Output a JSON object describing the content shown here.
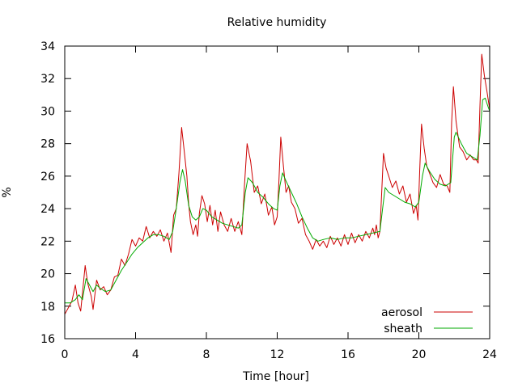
{
  "chart_data": {
    "type": "line",
    "title": "Relative humidity",
    "xlabel": "Time [hour]",
    "ylabel": "%",
    "xlim": [
      0,
      24
    ],
    "ylim": [
      16,
      34
    ],
    "xticks": [
      "0",
      "4",
      "8",
      "12",
      "16",
      "20",
      "24"
    ],
    "yticks": [
      "16",
      "18",
      "20",
      "22",
      "24",
      "26",
      "28",
      "30",
      "32",
      "34"
    ],
    "grid": false,
    "legend": "bottom-right",
    "series": [
      {
        "name": "aerosol",
        "color": "#cc0000",
        "points": [
          [
            0,
            17.5
          ],
          [
            0.2,
            17.9
          ],
          [
            0.4,
            18.3
          ],
          [
            0.6,
            19.3
          ],
          [
            0.75,
            18.2
          ],
          [
            0.9,
            17.7
          ],
          [
            1.0,
            18.8
          ],
          [
            1.15,
            20.5
          ],
          [
            1.3,
            19.4
          ],
          [
            1.5,
            18.6
          ],
          [
            1.6,
            17.8
          ],
          [
            1.8,
            19.6
          ],
          [
            2.0,
            19.0
          ],
          [
            2.2,
            19.2
          ],
          [
            2.4,
            18.7
          ],
          [
            2.6,
            19.0
          ],
          [
            2.8,
            19.8
          ],
          [
            3.0,
            19.9
          ],
          [
            3.2,
            20.9
          ],
          [
            3.4,
            20.5
          ],
          [
            3.6,
            21.2
          ],
          [
            3.8,
            22.1
          ],
          [
            4.0,
            21.7
          ],
          [
            4.2,
            22.2
          ],
          [
            4.4,
            22.0
          ],
          [
            4.6,
            22.9
          ],
          [
            4.8,
            22.2
          ],
          [
            5.0,
            22.6
          ],
          [
            5.2,
            22.3
          ],
          [
            5.4,
            22.7
          ],
          [
            5.6,
            22.0
          ],
          [
            5.8,
            22.5
          ],
          [
            6.0,
            21.3
          ],
          [
            6.15,
            23.6
          ],
          [
            6.3,
            24.0
          ],
          [
            6.45,
            26.2
          ],
          [
            6.6,
            29.0
          ],
          [
            6.75,
            27.5
          ],
          [
            6.9,
            26.0
          ],
          [
            7.0,
            24.3
          ],
          [
            7.1,
            23.2
          ],
          [
            7.25,
            22.4
          ],
          [
            7.4,
            23.0
          ],
          [
            7.5,
            22.3
          ],
          [
            7.6,
            23.7
          ],
          [
            7.75,
            24.8
          ],
          [
            7.9,
            24.3
          ],
          [
            8.05,
            23.2
          ],
          [
            8.2,
            24.2
          ],
          [
            8.35,
            23.0
          ],
          [
            8.5,
            23.9
          ],
          [
            8.65,
            22.6
          ],
          [
            8.8,
            23.8
          ],
          [
            9.0,
            23.0
          ],
          [
            9.2,
            22.6
          ],
          [
            9.4,
            23.4
          ],
          [
            9.6,
            22.6
          ],
          [
            9.8,
            23.2
          ],
          [
            10.0,
            22.4
          ],
          [
            10.15,
            25.4
          ],
          [
            10.3,
            28.0
          ],
          [
            10.5,
            26.9
          ],
          [
            10.7,
            25.0
          ],
          [
            10.9,
            25.4
          ],
          [
            11.1,
            24.3
          ],
          [
            11.3,
            24.9
          ],
          [
            11.5,
            23.6
          ],
          [
            11.7,
            24.1
          ],
          [
            11.85,
            23.0
          ],
          [
            12.0,
            23.5
          ],
          [
            12.1,
            25.8
          ],
          [
            12.2,
            28.4
          ],
          [
            12.35,
            26.6
          ],
          [
            12.5,
            25.0
          ],
          [
            12.65,
            25.4
          ],
          [
            12.8,
            24.4
          ],
          [
            13.0,
            24.0
          ],
          [
            13.2,
            23.1
          ],
          [
            13.4,
            23.4
          ],
          [
            13.6,
            22.4
          ],
          [
            13.8,
            22.0
          ],
          [
            14.0,
            21.5
          ],
          [
            14.2,
            22.1
          ],
          [
            14.4,
            21.7
          ],
          [
            14.6,
            22.0
          ],
          [
            14.8,
            21.6
          ],
          [
            15.0,
            22.3
          ],
          [
            15.2,
            21.8
          ],
          [
            15.4,
            22.2
          ],
          [
            15.6,
            21.7
          ],
          [
            15.8,
            22.4
          ],
          [
            16.0,
            21.8
          ],
          [
            16.2,
            22.5
          ],
          [
            16.4,
            21.9
          ],
          [
            16.6,
            22.4
          ],
          [
            16.8,
            22.0
          ],
          [
            17.0,
            22.6
          ],
          [
            17.2,
            22.2
          ],
          [
            17.4,
            22.8
          ],
          [
            17.5,
            22.4
          ],
          [
            17.6,
            23.0
          ],
          [
            17.7,
            22.2
          ],
          [
            17.8,
            22.6
          ],
          [
            17.9,
            25.0
          ],
          [
            18.0,
            27.4
          ],
          [
            18.15,
            26.5
          ],
          [
            18.3,
            26.0
          ],
          [
            18.5,
            25.3
          ],
          [
            18.7,
            25.7
          ],
          [
            18.9,
            24.9
          ],
          [
            19.1,
            25.4
          ],
          [
            19.3,
            24.4
          ],
          [
            19.5,
            24.9
          ],
          [
            19.7,
            23.7
          ],
          [
            19.85,
            24.2
          ],
          [
            19.95,
            23.3
          ],
          [
            20.05,
            26.4
          ],
          [
            20.15,
            29.2
          ],
          [
            20.3,
            27.7
          ],
          [
            20.45,
            26.6
          ],
          [
            20.6,
            26.2
          ],
          [
            20.8,
            25.6
          ],
          [
            21.0,
            25.3
          ],
          [
            21.2,
            26.1
          ],
          [
            21.4,
            25.5
          ],
          [
            21.6,
            25.4
          ],
          [
            21.75,
            25.0
          ],
          [
            21.85,
            29.3
          ],
          [
            21.95,
            31.5
          ],
          [
            22.1,
            29.4
          ],
          [
            22.3,
            27.8
          ],
          [
            22.5,
            27.5
          ],
          [
            22.7,
            27.0
          ],
          [
            22.9,
            27.3
          ],
          [
            23.1,
            27.0
          ],
          [
            23.25,
            27.0
          ],
          [
            23.35,
            26.8
          ],
          [
            23.45,
            30.3
          ],
          [
            23.55,
            33.5
          ],
          [
            23.7,
            32.2
          ],
          [
            23.85,
            31.2
          ],
          [
            24.0,
            30.1
          ]
        ]
      },
      {
        "name": "sheath",
        "color": "#00aa00",
        "points": [
          [
            0,
            18.2
          ],
          [
            0.3,
            18.2
          ],
          [
            0.6,
            18.4
          ],
          [
            0.8,
            18.7
          ],
          [
            1.0,
            18.4
          ],
          [
            1.2,
            19.7
          ],
          [
            1.4,
            19.3
          ],
          [
            1.6,
            18.9
          ],
          [
            1.8,
            19.3
          ],
          [
            2.0,
            19.1
          ],
          [
            2.3,
            18.9
          ],
          [
            2.6,
            19.0
          ],
          [
            2.9,
            19.6
          ],
          [
            3.2,
            20.2
          ],
          [
            3.5,
            20.7
          ],
          [
            3.8,
            21.2
          ],
          [
            4.1,
            21.6
          ],
          [
            4.4,
            21.9
          ],
          [
            4.7,
            22.2
          ],
          [
            5.0,
            22.4
          ],
          [
            5.3,
            22.4
          ],
          [
            5.6,
            22.3
          ],
          [
            5.9,
            22.1
          ],
          [
            6.1,
            22.6
          ],
          [
            6.3,
            24.0
          ],
          [
            6.5,
            25.6
          ],
          [
            6.65,
            26.4
          ],
          [
            6.8,
            25.7
          ],
          [
            7.0,
            24.2
          ],
          [
            7.2,
            23.5
          ],
          [
            7.4,
            23.3
          ],
          [
            7.6,
            23.5
          ],
          [
            7.8,
            24.0
          ],
          [
            8.0,
            23.9
          ],
          [
            8.3,
            23.5
          ],
          [
            8.6,
            23.3
          ],
          [
            8.9,
            23.1
          ],
          [
            9.2,
            23.0
          ],
          [
            9.5,
            22.9
          ],
          [
            9.8,
            22.8
          ],
          [
            10.0,
            23.0
          ],
          [
            10.2,
            25.0
          ],
          [
            10.35,
            25.9
          ],
          [
            10.6,
            25.6
          ],
          [
            10.9,
            25.0
          ],
          [
            11.2,
            24.7
          ],
          [
            11.5,
            24.3
          ],
          [
            11.8,
            24.0
          ],
          [
            12.0,
            23.9
          ],
          [
            12.15,
            25.4
          ],
          [
            12.3,
            26.2
          ],
          [
            12.5,
            25.7
          ],
          [
            12.8,
            25.0
          ],
          [
            13.1,
            24.3
          ],
          [
            13.4,
            23.5
          ],
          [
            13.7,
            22.8
          ],
          [
            14.0,
            22.2
          ],
          [
            14.3,
            22.0
          ],
          [
            14.6,
            22.1
          ],
          [
            15.0,
            22.2
          ],
          [
            15.4,
            22.1
          ],
          [
            15.8,
            22.2
          ],
          [
            16.2,
            22.2
          ],
          [
            16.6,
            22.3
          ],
          [
            17.0,
            22.4
          ],
          [
            17.4,
            22.5
          ],
          [
            17.8,
            22.6
          ],
          [
            17.95,
            24.0
          ],
          [
            18.1,
            25.3
          ],
          [
            18.3,
            25.0
          ],
          [
            18.6,
            24.8
          ],
          [
            18.9,
            24.6
          ],
          [
            19.2,
            24.4
          ],
          [
            19.5,
            24.3
          ],
          [
            19.8,
            24.1
          ],
          [
            20.0,
            24.4
          ],
          [
            20.2,
            26.0
          ],
          [
            20.35,
            26.8
          ],
          [
            20.6,
            26.3
          ],
          [
            20.9,
            25.8
          ],
          [
            21.2,
            25.5
          ],
          [
            21.5,
            25.4
          ],
          [
            21.8,
            25.6
          ],
          [
            22.0,
            28.4
          ],
          [
            22.1,
            28.7
          ],
          [
            22.4,
            28.0
          ],
          [
            22.7,
            27.4
          ],
          [
            23.0,
            27.2
          ],
          [
            23.3,
            27.0
          ],
          [
            23.45,
            28.5
          ],
          [
            23.6,
            30.7
          ],
          [
            23.75,
            30.8
          ],
          [
            23.9,
            30.3
          ],
          [
            24.0,
            30.0
          ]
        ]
      }
    ]
  }
}
